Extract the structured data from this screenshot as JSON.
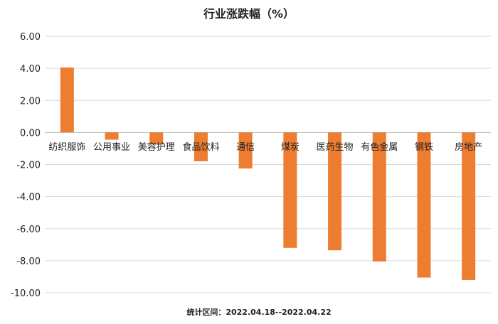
{
  "chart_data": {
    "type": "bar",
    "title": "行业涨跌幅（%）",
    "categories": [
      "纺织服饰",
      "公用事业",
      "美容护理",
      "食品饮料",
      "通信",
      "煤炭",
      "医药生物",
      "有色金属",
      "钢铁",
      "房地产"
    ],
    "values": [
      4.05,
      -0.45,
      -0.75,
      -1.8,
      -2.25,
      -7.2,
      -7.35,
      -8.05,
      -9.05,
      -9.2
    ],
    "ylim": [
      -10,
      6
    ],
    "yticks": [
      "6.00",
      "4.00",
      "2.00",
      "0.00",
      "-2.00",
      "-4.00",
      "-6.00",
      "-8.00",
      "-10.00"
    ],
    "grid": true,
    "bar_color": "#ED7D31",
    "footer": "统计区间：2022.04.18--2022.04.22"
  }
}
